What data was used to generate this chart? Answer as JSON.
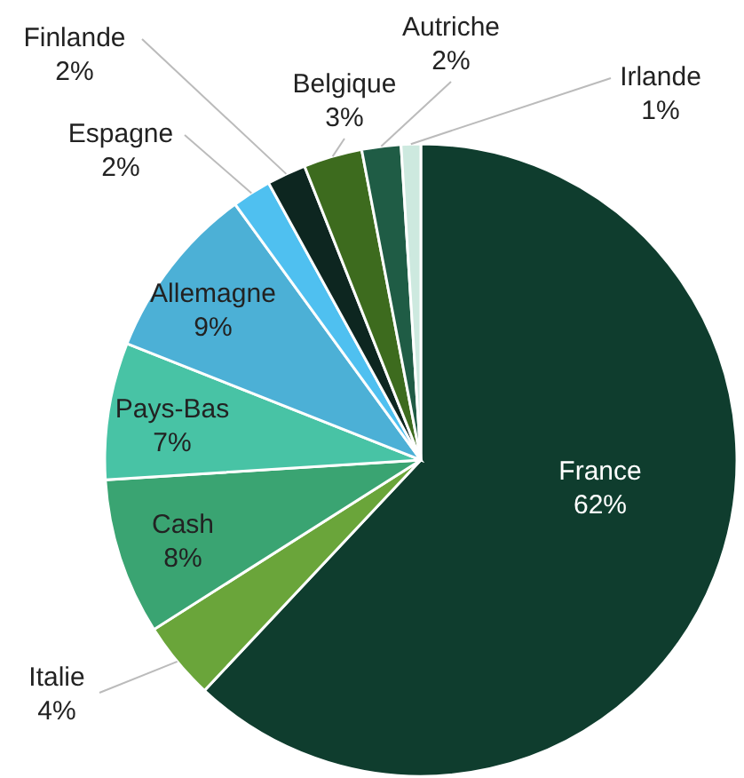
{
  "chart_data": {
    "type": "pie",
    "categories": [
      "France",
      "Italie",
      "Cash",
      "Pays-Bas",
      "Allemagne",
      "Espagne",
      "Finlande",
      "Belgique",
      "Autriche",
      "Irlande"
    ],
    "values": [
      62,
      4,
      8,
      7,
      9,
      2,
      2,
      3,
      2,
      1
    ],
    "value_labels": [
      "62%",
      "4%",
      "8%",
      "7%",
      "9%",
      "2%",
      "2%",
      "3%",
      "2%",
      "1%"
    ],
    "colors": [
      "#0f3d2e",
      "#6aa53a",
      "#3aa472",
      "#48c3a5",
      "#4cb0d6",
      "#4fc0f0",
      "#0d2620",
      "#3d6b1e",
      "#1f5c45",
      "#cde9df"
    ],
    "legend": false
  }
}
